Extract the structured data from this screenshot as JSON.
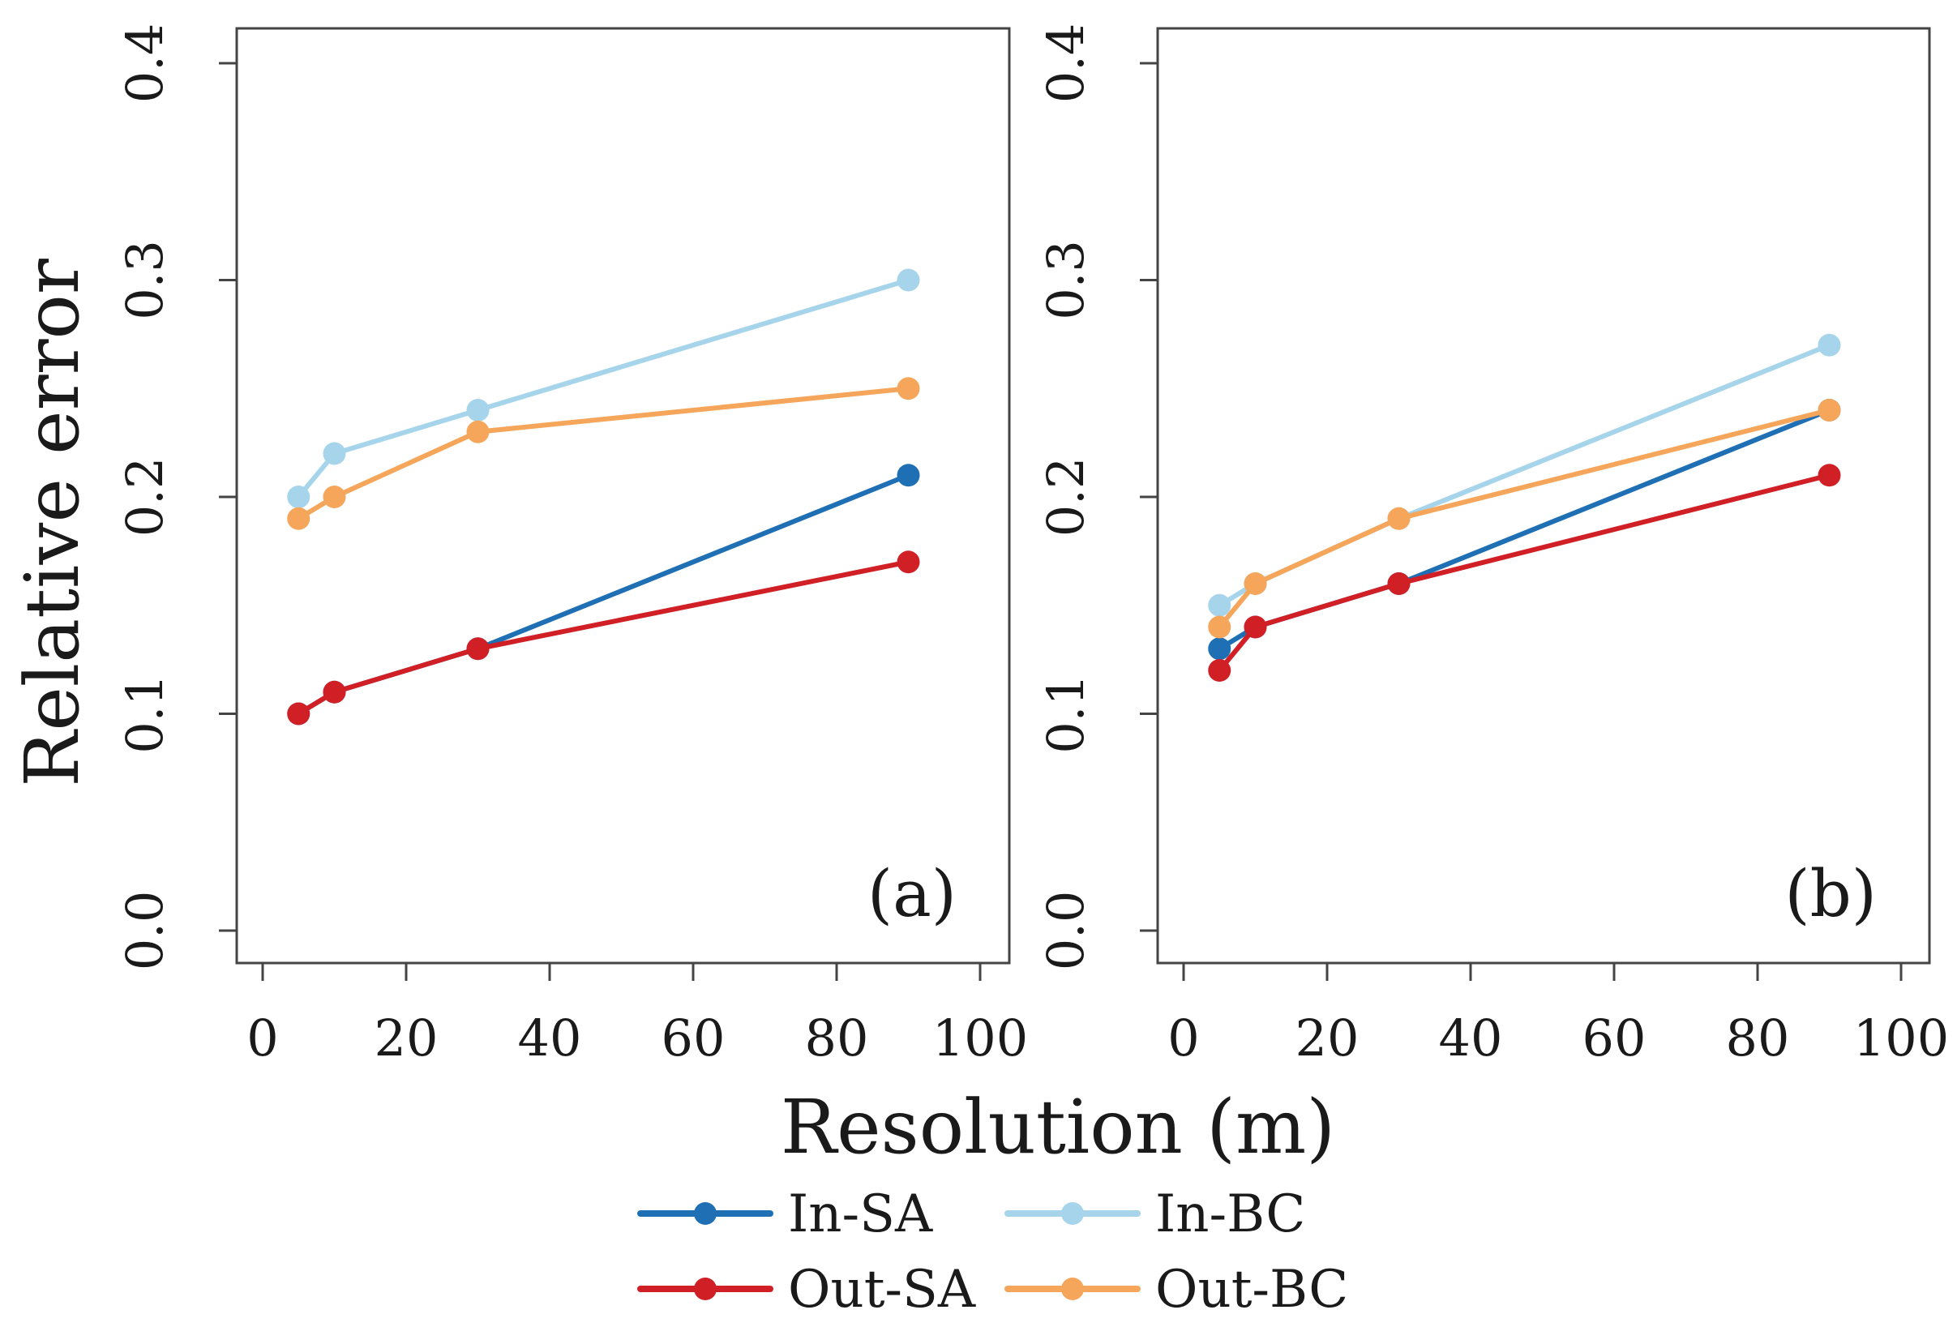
{
  "chart_data": {
    "type": "line",
    "xlabel": "Resolution (m)",
    "ylabel": "Relative error",
    "xlim": [
      0,
      100
    ],
    "ylim": [
      0,
      0.4
    ],
    "xticks": [
      "0",
      "20",
      "40",
      "60",
      "80",
      "100"
    ],
    "yticks": [
      "0.0",
      "0.1",
      "0.2",
      "0.3",
      "0.4"
    ],
    "grid": false,
    "legend_position": "bottom-center",
    "colors": {
      "In-SA": "#1f6fb4",
      "In-BC": "#a6d4ea",
      "Out-SA": "#d11f26",
      "Out-BC": "#f6a65a"
    },
    "panels": [
      {
        "label": "(a)",
        "x": [
          5,
          10,
          30,
          90
        ],
        "series": [
          {
            "name": "In-SA",
            "values": [
              0.1,
              0.11,
              0.13,
              0.21
            ]
          },
          {
            "name": "In-BC",
            "values": [
              0.2,
              0.22,
              0.24,
              0.3
            ]
          },
          {
            "name": "Out-SA",
            "values": [
              0.1,
              0.11,
              0.13,
              0.17
            ]
          },
          {
            "name": "Out-BC",
            "values": [
              0.19,
              0.2,
              0.23,
              0.25
            ]
          }
        ]
      },
      {
        "label": "(b)",
        "x": [
          5,
          10,
          30,
          90
        ],
        "series": [
          {
            "name": "In-SA",
            "values": [
              0.13,
              0.14,
              0.16,
              0.24
            ]
          },
          {
            "name": "In-BC",
            "values": [
              0.15,
              0.16,
              0.19,
              0.27
            ]
          },
          {
            "name": "Out-SA",
            "values": [
              0.12,
              0.14,
              0.16,
              0.21
            ]
          },
          {
            "name": "Out-BC",
            "values": [
              0.14,
              0.16,
              0.19,
              0.24
            ]
          }
        ]
      }
    ],
    "legend": {
      "items": [
        "In-SA",
        "In-BC",
        "Out-SA",
        "Out-BC"
      ]
    }
  }
}
